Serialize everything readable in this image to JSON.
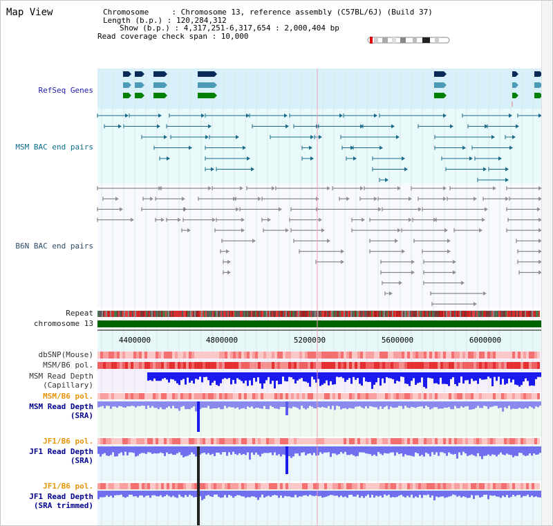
{
  "header": {
    "title": "Map View",
    "chromosome_line": "Chromosome     : Chromosome 13, reference assembly (C57BL/6J) (Build 37)",
    "length_line": "Length (b.p.) : 120,284,312",
    "show_line": "Show (b.p.) : 4,317,251-6,317,654 : 2,000,404 bp",
    "coverage_line": "Read coverage check span : 10,000"
  },
  "tracks": {
    "refseq": "RefSeq Genes",
    "msm_bac": "MSM BAC end pairs",
    "b6n_bac": "B6N BAC end pairs",
    "repeat": "Repeat",
    "chromosome": "chromosome 13",
    "dbsnp": "dbSNP(Mouse)",
    "msm_b6_pol_1": "MSM/B6 pol.",
    "msm_depth_cap_1": "MSM Read Depth",
    "msm_depth_cap_2": "(Capillary)",
    "msm_b6_pol_2": "MSM/B6 pol.",
    "msm_depth_sra_1": "MSM Read Depth",
    "msm_depth_sra_2": "(SRA)",
    "jf1_b6_pol_1": "JF1/B6 pol.",
    "jf1_depth_sra_1": "JF1 Read Depth",
    "jf1_depth_sra_2": "(SRA)",
    "jf1_b6_pol_2": "JF1/B6 pol.",
    "jf1_depth_trim_1": "JF1 Read Depth",
    "jf1_depth_trim_2": "(SRA trimmed)"
  },
  "axis": {
    "ticks": [
      "4400000",
      "4800000",
      "5200000",
      "5600000",
      "6000000"
    ]
  },
  "colors": {
    "refseq_bg": "#d8f0fa",
    "bac_bg": "#e8fafa",
    "b6n_bg": "#f8f8ff",
    "chromosome_bar": "#006400",
    "gene_dark": "#0a2a5a",
    "gene_mid": "#4a9ab8",
    "gene_green": "#008000",
    "msm_pair": "#1a6a8a",
    "b6n_pair": "#707070",
    "depth_capillary": "#1a1aee",
    "depth_sra": "#8a8aee",
    "pol_red": "#f06060"
  }
}
